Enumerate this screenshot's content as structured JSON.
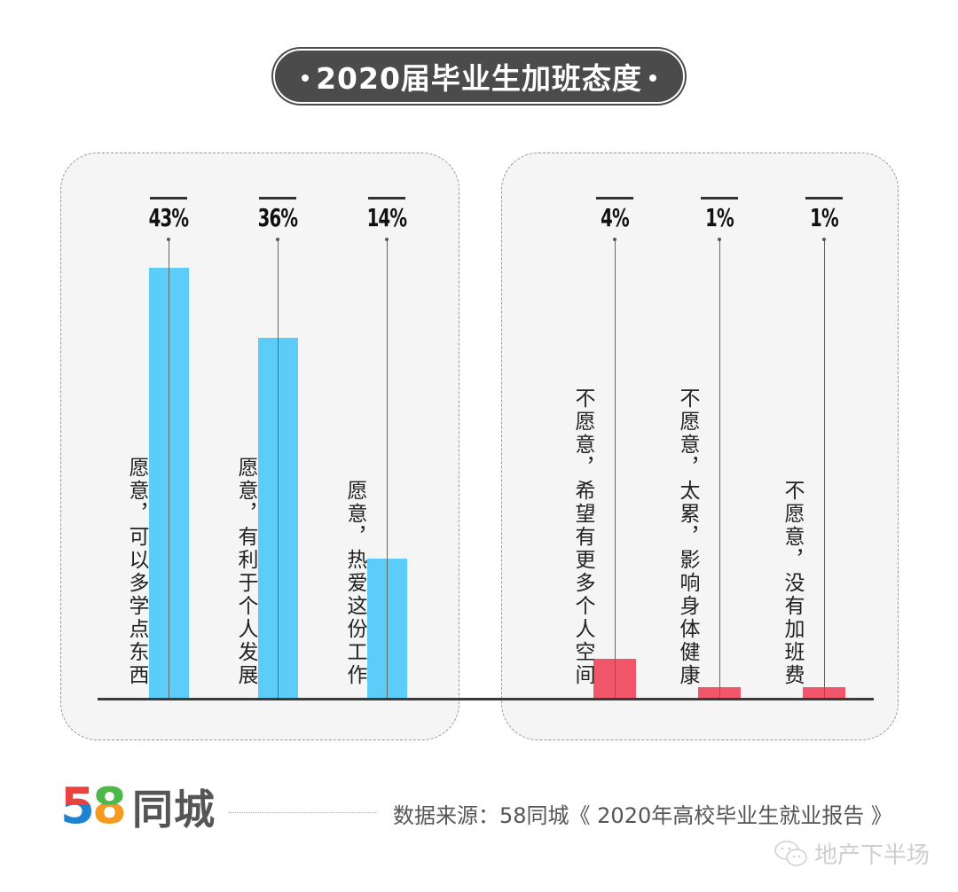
{
  "title": "2020届毕业生加班态度",
  "colors": {
    "willing": "#5ccdf8",
    "unwilling": "#f1566b",
    "title_bg": "#4b4b4b",
    "panel_bg": "#f5f5f5"
  },
  "chart_data": {
    "type": "bar",
    "title": "2020届毕业生加班态度",
    "xlabel": "",
    "ylabel": "",
    "ylim": [
      0,
      50
    ],
    "grid": false,
    "categories": [
      "愿意，可以多学点东西",
      "愿意，有利于个人发展",
      "愿意，热爱这份工作",
      "不愿意，希望有更多个人空间",
      "不愿意，太累，影响身体健康",
      "不愿意，没有加班费"
    ],
    "values": [
      43,
      36,
      14,
      4,
      1,
      1
    ],
    "value_labels": [
      "43%",
      "36%",
      "14%",
      "4%",
      "1%",
      "1%"
    ],
    "groups": [
      {
        "name": "愿意",
        "color": "#5ccdf8",
        "indices": [
          0,
          1,
          2
        ]
      },
      {
        "name": "不愿意",
        "color": "#f1566b",
        "indices": [
          3,
          4,
          5
        ]
      }
    ]
  },
  "bars": [
    {
      "label": "愿意，可以多学点东西",
      "pct": "43%"
    },
    {
      "label": "愿意，有利于个人发展",
      "pct": "36%"
    },
    {
      "label": "愿意，热爱这份工作",
      "pct": "14%"
    },
    {
      "label": "不愿意，希望有更多个人空间",
      "pct": "4%"
    },
    {
      "label": "不愿意，太累，影响身体健康",
      "pct": "1%"
    },
    {
      "label": "不愿意，没有加班费",
      "pct": "1%"
    }
  ],
  "footer": {
    "logo_digits": [
      "5",
      "8"
    ],
    "logo_name": "同城",
    "source": "数据来源：58同城《 2020年高校毕业生就业报告 》",
    "watermark": "地产下半场"
  }
}
